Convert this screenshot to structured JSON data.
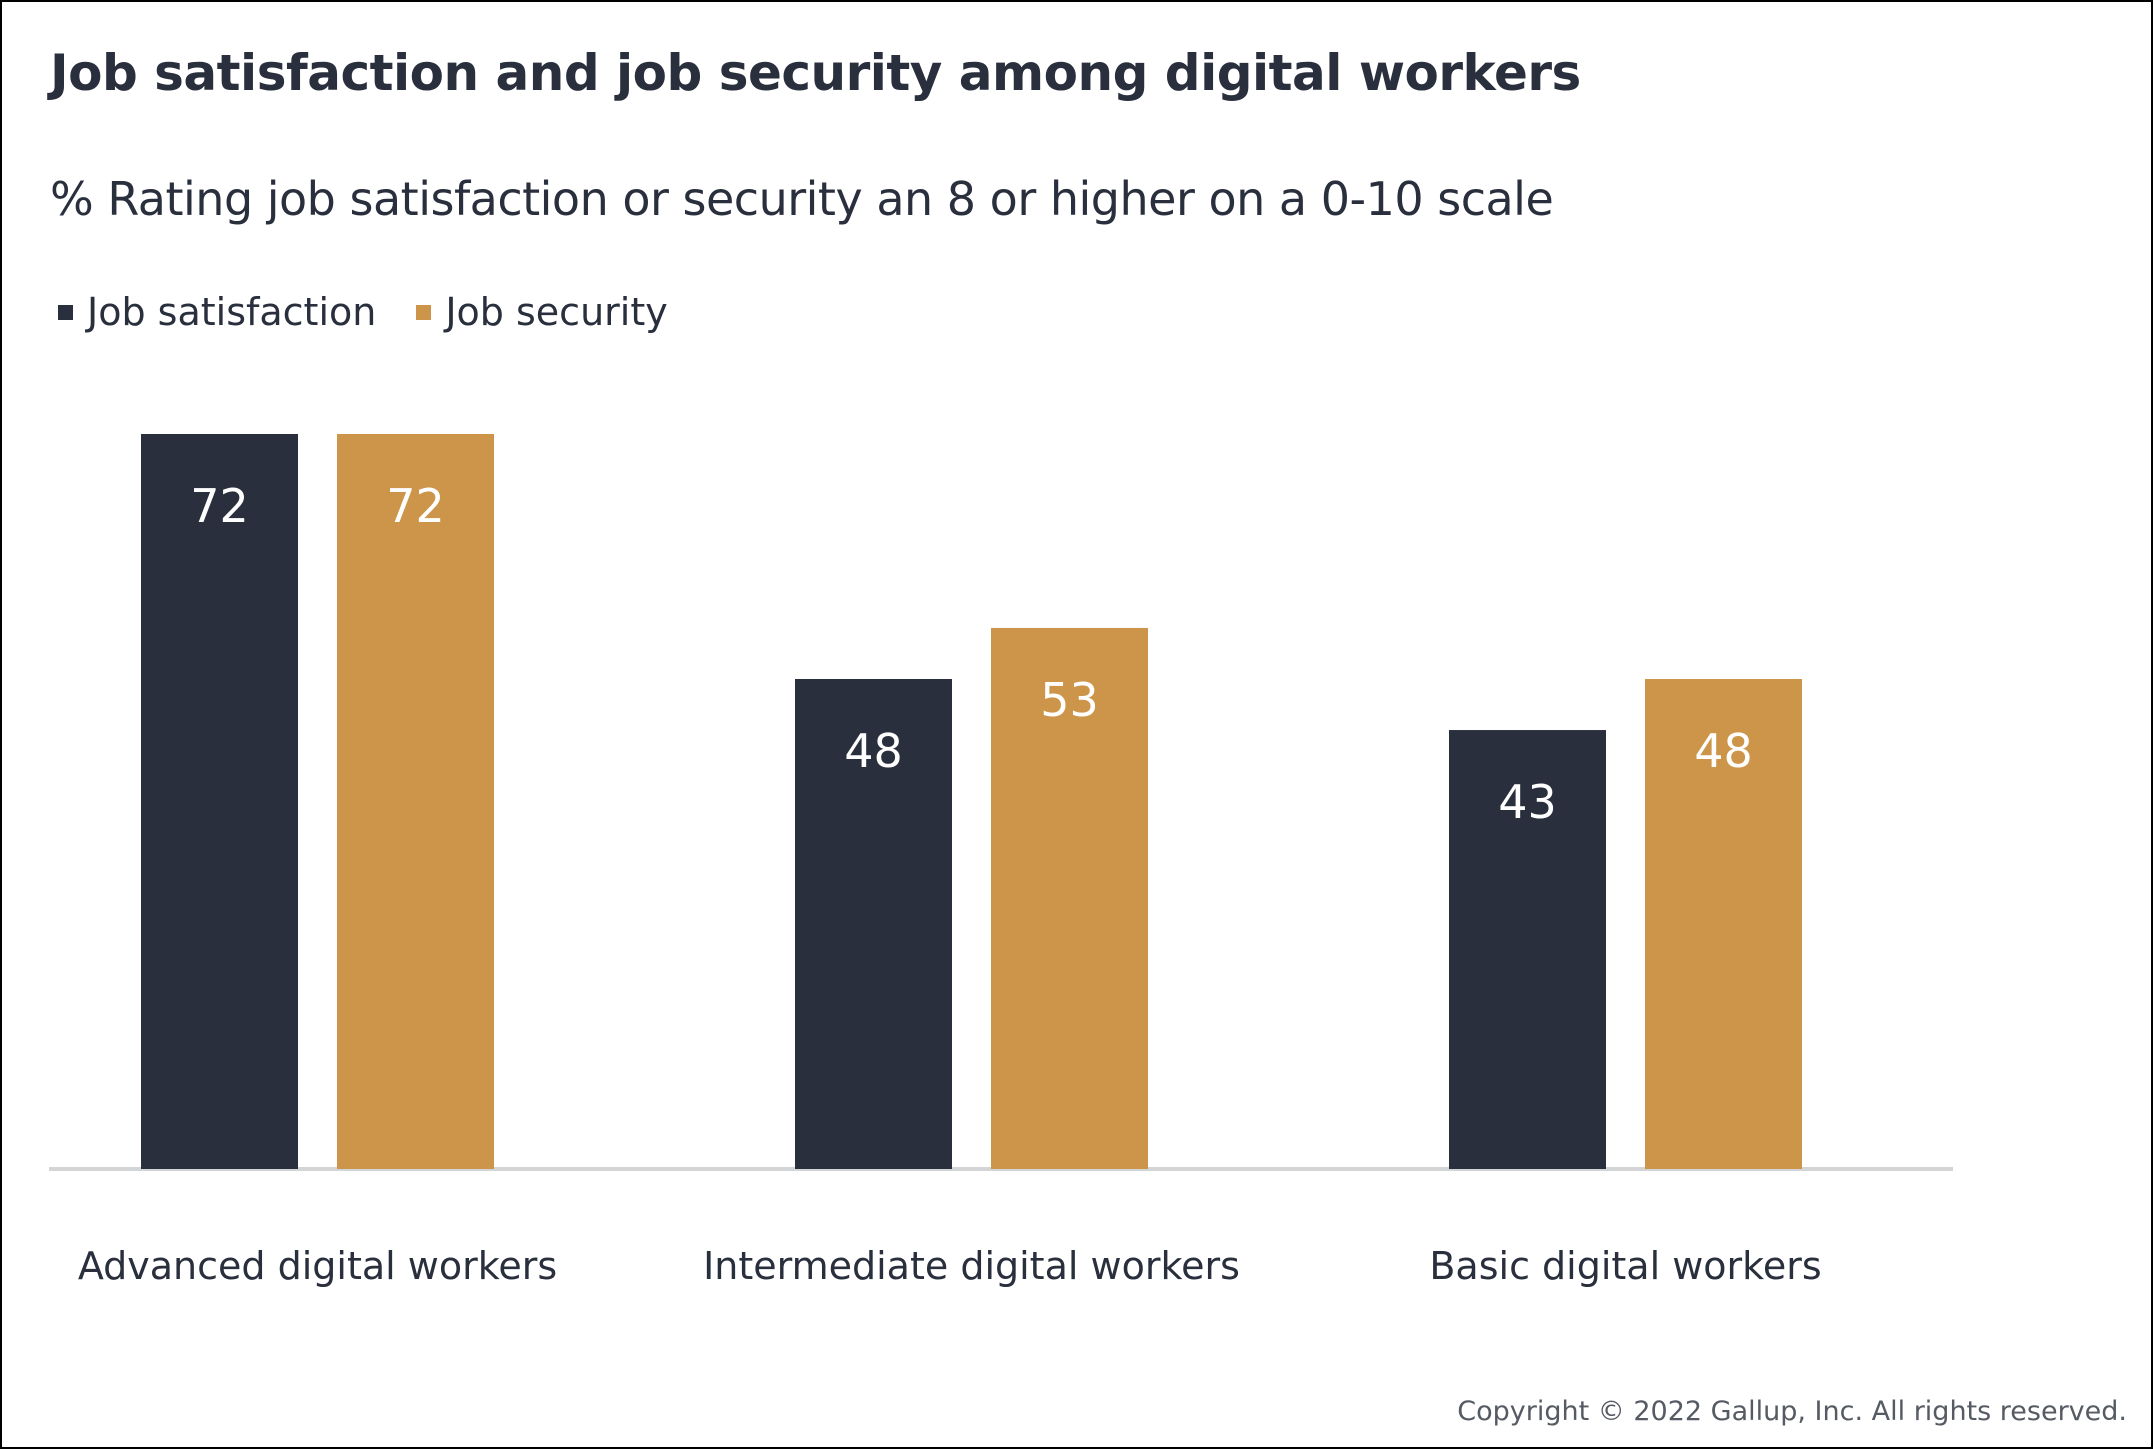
{
  "header": {
    "title": "Job satisfaction and job security among digital workers",
    "subtitle": "% Rating job satisfaction or security an 8 or higher on a 0-10 scale"
  },
  "legend": [
    {
      "label": "Job satisfaction",
      "color": "#2a2f3d"
    },
    {
      "label": "Job security",
      "color": "#cc9549"
    }
  ],
  "footer": {
    "copyright": "Copyright © 2022 Gallup, Inc. All rights reserved."
  },
  "chart_data": {
    "type": "bar",
    "title": "Job satisfaction and job security among digital workers",
    "subtitle": "% Rating job satisfaction or security an 8 or higher on a 0-10 scale",
    "categories": [
      "Advanced digital workers",
      "Intermediate digital workers",
      "Basic digital workers"
    ],
    "series": [
      {
        "name": "Job satisfaction",
        "color": "#2a2f3d",
        "values": [
          72,
          48,
          43
        ]
      },
      {
        "name": "Job security",
        "color": "#cc9549",
        "values": [
          72,
          53,
          48
        ]
      }
    ],
    "xlabel": "",
    "ylabel": "",
    "ylim": [
      0,
      72
    ],
    "grid": false,
    "data_labels": true,
    "legend_position": "top-left",
    "baseline_color": "#d3d4d6"
  }
}
